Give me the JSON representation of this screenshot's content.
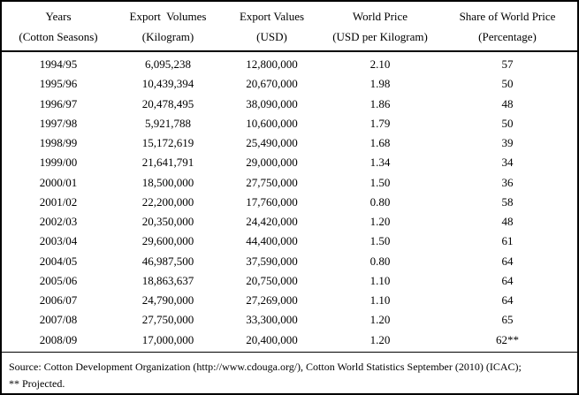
{
  "table": {
    "columns": [
      {
        "label": "Years",
        "unit": "(Cotton Seasons)"
      },
      {
        "label": "Export  Volumes",
        "unit": "(Kilogram)"
      },
      {
        "label": "Export Values",
        "unit": "(USD)"
      },
      {
        "label": "World Price",
        "unit": "(USD per Kilogram)"
      },
      {
        "label": "Share of World Price",
        "unit": "(Percentage)"
      }
    ],
    "rows": [
      {
        "season": "1994/95",
        "volume_kg": "6,095,238",
        "value_usd": "12,800,000",
        "world_price": "2.10",
        "share_pct": "57"
      },
      {
        "season": "1995/96",
        "volume_kg": "10,439,394",
        "value_usd": "20,670,000",
        "world_price": "1.98",
        "share_pct": "50"
      },
      {
        "season": "1996/97",
        "volume_kg": "20,478,495",
        "value_usd": "38,090,000",
        "world_price": "1.86",
        "share_pct": "48"
      },
      {
        "season": "1997/98",
        "volume_kg": "5,921,788",
        "value_usd": "10,600,000",
        "world_price": "1.79",
        "share_pct": "50"
      },
      {
        "season": "1998/99",
        "volume_kg": "15,172,619",
        "value_usd": "25,490,000",
        "world_price": "1.68",
        "share_pct": "39"
      },
      {
        "season": "1999/00",
        "volume_kg": "21,641,791",
        "value_usd": "29,000,000",
        "world_price": "1.34",
        "share_pct": "34"
      },
      {
        "season": "2000/01",
        "volume_kg": "18,500,000",
        "value_usd": "27,750,000",
        "world_price": "1.50",
        "share_pct": "36"
      },
      {
        "season": "2001/02",
        "volume_kg": "22,200,000",
        "value_usd": "17,760,000",
        "world_price": "0.80",
        "share_pct": "58"
      },
      {
        "season": "2002/03",
        "volume_kg": "20,350,000",
        "value_usd": "24,420,000",
        "world_price": "1.20",
        "share_pct": "48"
      },
      {
        "season": "2003/04",
        "volume_kg": "29,600,000",
        "value_usd": "44,400,000",
        "world_price": "1.50",
        "share_pct": "61"
      },
      {
        "season": "2004/05",
        "volume_kg": "46,987,500",
        "value_usd": "37,590,000",
        "world_price": "0.80",
        "share_pct": "64"
      },
      {
        "season": "2005/06",
        "volume_kg": "18,863,637",
        "value_usd": "20,750,000",
        "world_price": "1.10",
        "share_pct": "64"
      },
      {
        "season": "2006/07",
        "volume_kg": "24,790,000",
        "value_usd": "27,269,000",
        "world_price": "1.10",
        "share_pct": "64"
      },
      {
        "season": "2007/08",
        "volume_kg": "27,750,000",
        "value_usd": "33,300,000",
        "world_price": "1.20",
        "share_pct": "65"
      },
      {
        "season": "2008/09",
        "volume_kg": "17,000,000",
        "value_usd": "20,400,000",
        "world_price": "1.20",
        "share_pct": "62**"
      }
    ]
  },
  "footer": {
    "source_line": "Source: Cotton Development Organization (http://www.cdouga.org/), Cotton World Statistics September (2010) (ICAC);",
    "note_line": "** Projected."
  },
  "colors": {
    "text": "#000000",
    "background": "#ffffff",
    "border": "#000000"
  },
  "chart_data": {
    "type": "table",
    "columns": [
      "Years (Cotton Seasons)",
      "Export Volumes (Kilogram)",
      "Export Values (USD)",
      "World Price (USD per Kilogram)",
      "Share of World Price (Percentage)"
    ],
    "rows": [
      [
        "1994/95",
        6095238,
        12800000,
        2.1,
        57
      ],
      [
        "1995/96",
        10439394,
        20670000,
        1.98,
        50
      ],
      [
        "1996/97",
        20478495,
        38090000,
        1.86,
        48
      ],
      [
        "1997/98",
        5921788,
        10600000,
        1.79,
        50
      ],
      [
        "1998/99",
        15172619,
        25490000,
        1.68,
        39
      ],
      [
        "1999/00",
        21641791,
        29000000,
        1.34,
        34
      ],
      [
        "2000/01",
        18500000,
        27750000,
        1.5,
        36
      ],
      [
        "2001/02",
        22200000,
        17760000,
        0.8,
        58
      ],
      [
        "2002/03",
        20350000,
        24420000,
        1.2,
        48
      ],
      [
        "2003/04",
        29600000,
        44400000,
        1.5,
        61
      ],
      [
        "2004/05",
        46987500,
        37590000,
        0.8,
        64
      ],
      [
        "2005/06",
        18863637,
        20750000,
        1.1,
        64
      ],
      [
        "2006/07",
        24790000,
        27269000,
        1.1,
        64
      ],
      [
        "2007/08",
        27750000,
        33300000,
        1.2,
        65
      ],
      [
        "2008/09",
        17000000,
        20400000,
        1.2,
        62
      ]
    ],
    "notes": "Share value for 2008/09 is marked ** meaning Projected"
  }
}
